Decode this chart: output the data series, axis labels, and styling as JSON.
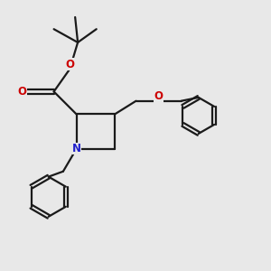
{
  "bg_color": "#e8e8e8",
  "bond_color": "#1a1a1a",
  "N_color": "#2020cc",
  "O_color": "#cc0000",
  "line_width": 1.6,
  "fig_size": [
    3.0,
    3.0
  ],
  "dpi": 100,
  "xlim": [
    0,
    10
  ],
  "ylim": [
    0,
    10
  ],
  "font_size": 8.5
}
